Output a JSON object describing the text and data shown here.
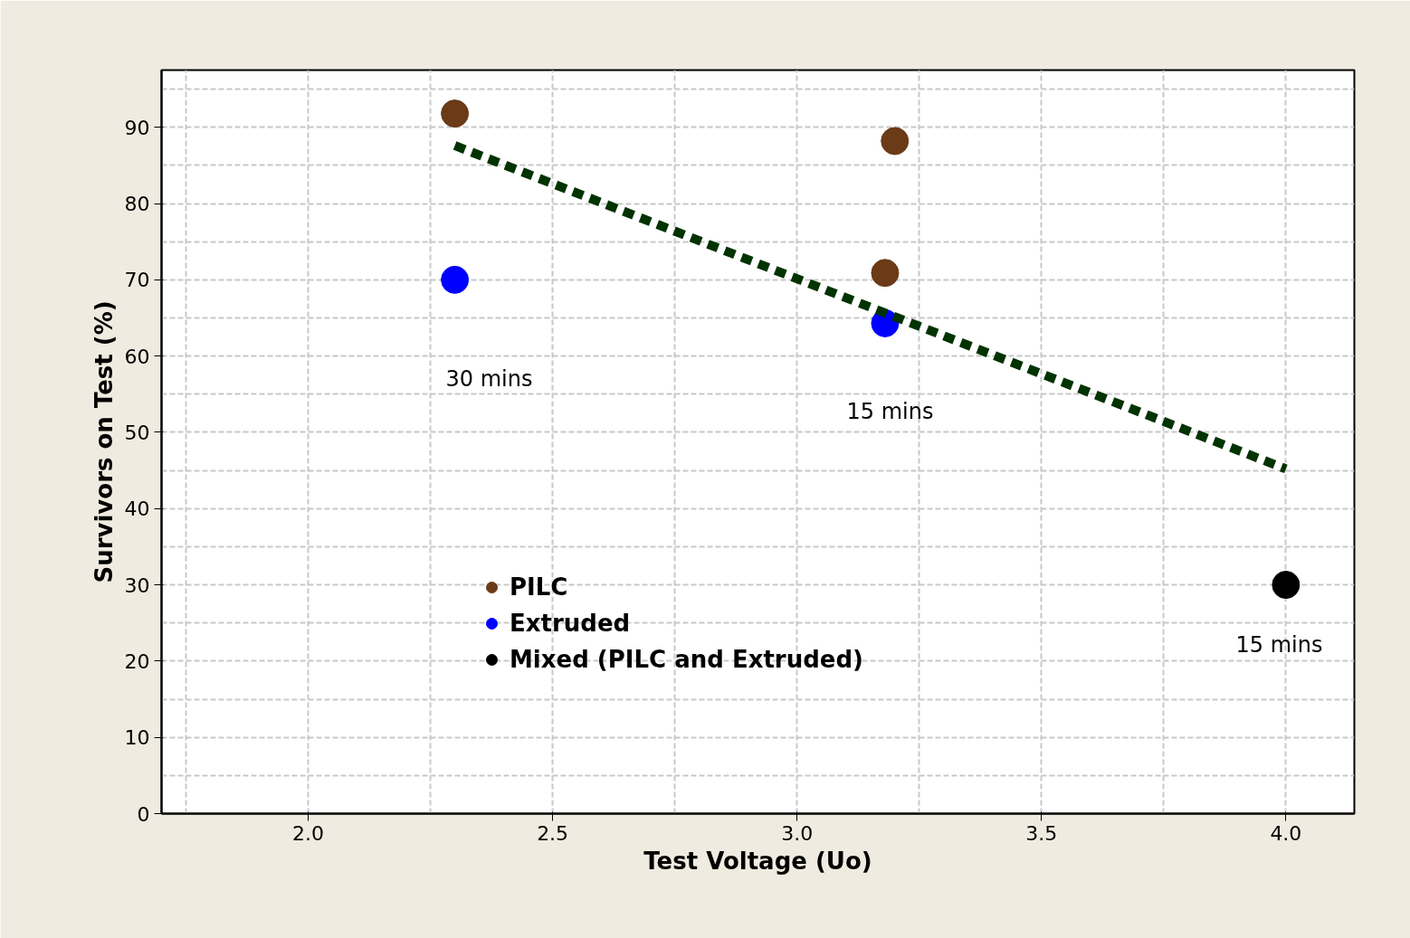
{
  "chart_data": {
    "type": "scatter",
    "xlabel": "Test Voltage (Uo)",
    "ylabel": "Survivors on Test (%)",
    "xlim": [
      1.7,
      4.14
    ],
    "ylim": [
      0,
      97.5
    ],
    "xticks": [
      {
        "value": 2.0,
        "label": "2.0"
      },
      2.5,
      {
        "value": 3.0,
        "label": "3.0"
      },
      3.5,
      {
        "value": 4.0,
        "label": "4.0"
      }
    ],
    "yticks": [
      0,
      10,
      20,
      30,
      40,
      50,
      60,
      70,
      80,
      90
    ],
    "grid": true,
    "legend": "bottom left",
    "marker": "circle",
    "series": [
      {
        "name": "PILC",
        "color": "#6b3a17",
        "x": [
          2.3,
          3.2,
          3.18
        ],
        "values": [
          91.8,
          88.2,
          70.9
        ]
      },
      {
        "name": "Extruded",
        "color": "#0000ff",
        "x": [
          2.3,
          3.18
        ],
        "values": [
          70.0,
          64.3
        ]
      },
      {
        "name": "Mixed (PILC and Extruded)",
        "color": "#000000",
        "x": [
          4.0
        ],
        "values": [
          30.0
        ]
      },
      {
        "type": "line",
        "marker": "none",
        "color": "#003300",
        "line_style": "dashed",
        "x": [
          2.3,
          4.0
        ],
        "values": [
          87.6,
          45.2
        ]
      }
    ],
    "annotations": [
      "30 mins",
      "15 mins",
      "15 mins"
    ]
  }
}
